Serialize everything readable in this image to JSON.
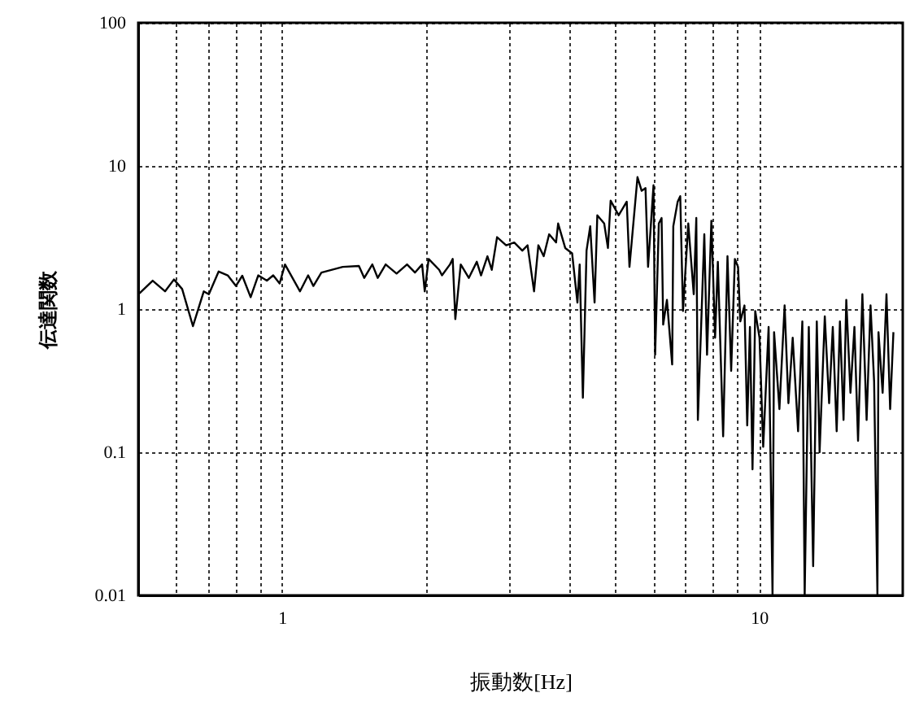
{
  "chart_data": {
    "type": "line",
    "xlabel": "振動数[Hz]",
    "ylabel": "伝達関数",
    "log": "xy",
    "grid": true,
    "line_style": "solid",
    "xlim": [
      0.5,
      20
    ],
    "ylim": [
      0.01,
      100
    ],
    "xticks": [
      {
        "value": 0.6,
        "label": null
      },
      {
        "value": 0.7,
        "label": null
      },
      {
        "value": 0.8,
        "label": null
      },
      {
        "value": 0.9,
        "label": null
      },
      1,
      {
        "value": 2,
        "label": null
      },
      {
        "value": 3,
        "label": null
      },
      {
        "value": 4,
        "label": null
      },
      {
        "value": 5,
        "label": null
      },
      {
        "value": 6,
        "label": null
      },
      {
        "value": 7,
        "label": null
      },
      {
        "value": 8,
        "label": null
      },
      {
        "value": 9,
        "label": null
      },
      10
    ],
    "yticks": [
      0.01,
      0.1,
      1,
      10,
      100
    ],
    "series": [
      {
        "color": "#000000",
        "x": [
          0.503,
          0.536,
          0.569,
          0.594,
          0.618,
          0.651,
          0.686,
          0.703,
          0.737,
          0.77,
          0.801,
          0.826,
          0.86,
          0.892,
          0.93,
          0.959,
          0.989,
          1.015,
          1.091,
          1.135,
          1.164,
          1.21,
          1.341,
          1.45,
          1.488,
          1.547,
          1.588,
          1.65,
          1.739,
          1.829,
          1.901,
          1.967,
          1.992,
          2.03,
          2.136,
          2.165,
          2.25,
          2.28,
          2.309,
          2.37,
          2.464,
          2.561,
          2.614,
          2.696,
          2.753,
          2.824,
          2.951,
          3.068,
          3.19,
          3.272,
          3.376,
          3.447,
          3.537,
          3.631,
          3.754,
          3.792,
          3.924,
          4.057,
          4.162,
          4.207,
          4.273,
          4.349,
          4.427,
          4.521,
          4.581,
          4.736,
          4.822,
          4.885,
          5.078,
          5.28,
          5.35,
          5.561,
          5.674,
          5.78,
          5.852,
          6.008,
          6.055,
          6.164,
          6.247,
          6.295,
          6.41,
          6.574,
          6.61,
          6.751,
          6.835,
          6.926,
          7.105,
          7.295,
          7.386,
          7.442,
          7.677,
          7.779,
          7.943,
          8.087,
          8.195,
          8.407,
          8.585,
          8.739,
          8.897,
          9.034,
          9.133,
          9.319,
          9.443,
          9.568,
          9.687,
          9.815,
          10.02,
          10.2,
          10.47,
          10.67,
          10.75,
          11.03,
          11.31,
          11.52,
          11.76,
          12.07,
          12.32,
          12.46,
          12.71,
          12.98,
          13.21,
          13.39,
          13.73,
          14.02,
          14.27,
          14.54,
          14.77,
          15.03,
          15.23,
          15.54,
          15.84,
          16.12,
          16.46,
          16.8,
          17.12,
          17.42,
          17.7,
          17.79,
          18.15,
          18.49,
          18.82,
          19.12
        ],
        "values": [
          1.29,
          1.58,
          1.33,
          1.61,
          1.38,
          0.76,
          1.33,
          1.27,
          1.83,
          1.72,
          1.45,
          1.71,
          1.21,
          1.72,
          1.58,
          1.72,
          1.51,
          2.05,
          1.33,
          1.72,
          1.45,
          1.8,
          1.97,
          2.0,
          1.65,
          2.05,
          1.65,
          2.05,
          1.77,
          2.05,
          1.8,
          2.05,
          1.33,
          2.24,
          1.88,
          1.72,
          2.05,
          2.24,
          0.85,
          2.05,
          1.65,
          2.14,
          1.72,
          2.34,
          1.88,
          3.18,
          2.79,
          2.92,
          2.56,
          2.79,
          1.33,
          2.79,
          2.34,
          3.33,
          2.92,
          3.96,
          2.67,
          2.45,
          1.11,
          2.05,
          0.24,
          2.56,
          3.79,
          1.11,
          4.52,
          3.96,
          2.67,
          5.72,
          4.52,
          5.63,
          1.97,
          8.35,
          6.7,
          7.0,
          1.97,
          7.33,
          0.48,
          3.96,
          4.33,
          0.78,
          1.16,
          0.41,
          3.79,
          5.63,
          6.15,
          0.97,
          3.96,
          1.27,
          4.33,
          0.168,
          3.33,
          0.48,
          4.14,
          0.63,
          2.14,
          0.129,
          2.34,
          0.37,
          2.24,
          1.97,
          0.82,
          1.06,
          0.154,
          0.75,
          0.076,
          0.97,
          0.63,
          0.109,
          0.75,
          0.01,
          0.69,
          0.2,
          1.06,
          0.22,
          0.63,
          0.14,
          0.82,
          0.01,
          0.75,
          0.016,
          0.82,
          0.1,
          0.89,
          0.22,
          0.75,
          0.14,
          0.82,
          0.168,
          1.16,
          0.26,
          0.75,
          0.12,
          1.27,
          0.168,
          1.06,
          0.31,
          0.01,
          0.69,
          0.26,
          1.27,
          0.2,
          0.69
        ]
      }
    ]
  }
}
